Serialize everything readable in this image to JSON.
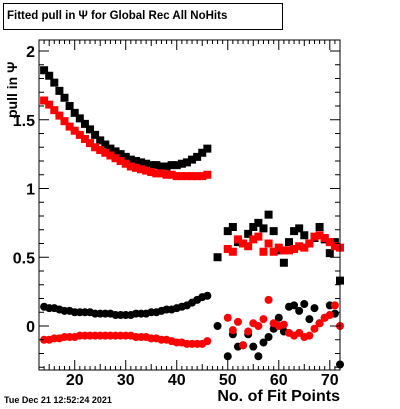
{
  "chart_data": {
    "type": "scatter",
    "title": "Fitted pull in  Ψ  for Global Rec All NoHits",
    "xlabel": "No. of Fit Points",
    "ylabel": "pull in  Ψ",
    "timestamp": "Tue Dec 21 12:52:24 2021",
    "xlim": [
      13,
      72
    ],
    "ylim": [
      -0.32,
      2.08
    ],
    "x_ticks": [
      20,
      30,
      40,
      50,
      60,
      70
    ],
    "y_ticks": [
      {
        "value": 0,
        "label": "0"
      },
      {
        "value": 0.5,
        "label": "0.5"
      },
      {
        "value": 1,
        "label": "1"
      },
      {
        "value": 1.5,
        "label": "1.5"
      },
      {
        "value": 2,
        "label": "2"
      }
    ],
    "series": [
      {
        "color": "#000000",
        "marker": "square",
        "points": [
          [
            14,
            1.86
          ],
          [
            15,
            1.82
          ],
          [
            16,
            1.77
          ],
          [
            17,
            1.71
          ],
          [
            18,
            1.66
          ],
          [
            19,
            1.6
          ],
          [
            20,
            1.55
          ],
          [
            21,
            1.51
          ],
          [
            22,
            1.47
          ],
          [
            23,
            1.43
          ],
          [
            24,
            1.39
          ],
          [
            25,
            1.35
          ],
          [
            26,
            1.32
          ],
          [
            27,
            1.29
          ],
          [
            28,
            1.27
          ],
          [
            29,
            1.25
          ],
          [
            30,
            1.23
          ],
          [
            31,
            1.21
          ],
          [
            32,
            1.2
          ],
          [
            33,
            1.19
          ],
          [
            34,
            1.18
          ],
          [
            35,
            1.17
          ],
          [
            36,
            1.17
          ],
          [
            37,
            1.16
          ],
          [
            38,
            1.16
          ],
          [
            39,
            1.17
          ],
          [
            40,
            1.17
          ],
          [
            41,
            1.18
          ],
          [
            42,
            1.19
          ],
          [
            43,
            1.21
          ],
          [
            44,
            1.23
          ],
          [
            45,
            1.26
          ],
          [
            46,
            1.29
          ],
          [
            48,
            0.5
          ],
          [
            50,
            0.69
          ],
          [
            51,
            0.72
          ],
          [
            52,
            0.61
          ],
          [
            53,
            0.6
          ],
          [
            54,
            0.67
          ],
          [
            55,
            0.72
          ],
          [
            56,
            0.75
          ],
          [
            57,
            0.71
          ],
          [
            58,
            0.81
          ],
          [
            59,
            0.69
          ],
          [
            60,
            0.55
          ],
          [
            61,
            0.46
          ],
          [
            62,
            0.61
          ],
          [
            63,
            0.69
          ],
          [
            64,
            0.71
          ],
          [
            65,
            0.66
          ],
          [
            66,
            0.6
          ],
          [
            67,
            0.64
          ],
          [
            68,
            0.72
          ],
          [
            69,
            0.63
          ],
          [
            70,
            0.53
          ],
          [
            71,
            0.61
          ],
          [
            72,
            0.33
          ]
        ]
      },
      {
        "color": "#ff0000",
        "marker": "square",
        "points": [
          [
            14,
            1.64
          ],
          [
            15,
            1.61
          ],
          [
            16,
            1.57
          ],
          [
            17,
            1.53
          ],
          [
            18,
            1.49
          ],
          [
            19,
            1.45
          ],
          [
            20,
            1.42
          ],
          [
            21,
            1.39
          ],
          [
            22,
            1.36
          ],
          [
            23,
            1.33
          ],
          [
            24,
            1.3
          ],
          [
            25,
            1.28
          ],
          [
            26,
            1.26
          ],
          [
            27,
            1.24
          ],
          [
            28,
            1.22
          ],
          [
            29,
            1.2
          ],
          [
            30,
            1.18
          ],
          [
            31,
            1.16
          ],
          [
            32,
            1.15
          ],
          [
            33,
            1.14
          ],
          [
            34,
            1.13
          ],
          [
            35,
            1.12
          ],
          [
            36,
            1.11
          ],
          [
            37,
            1.11
          ],
          [
            38,
            1.1
          ],
          [
            39,
            1.1
          ],
          [
            40,
            1.09
          ],
          [
            41,
            1.09
          ],
          [
            42,
            1.09
          ],
          [
            43,
            1.09
          ],
          [
            44,
            1.09
          ],
          [
            45,
            1.09
          ],
          [
            46,
            1.1
          ],
          [
            50,
            0.56
          ],
          [
            51,
            0.54
          ],
          [
            52,
            0.63
          ],
          [
            53,
            0.6
          ],
          [
            54,
            0.58
          ],
          [
            55,
            0.63
          ],
          [
            56,
            0.65
          ],
          [
            57,
            0.54
          ],
          [
            58,
            0.6
          ],
          [
            59,
            0.54
          ],
          [
            60,
            0.57
          ],
          [
            61,
            0.55
          ],
          [
            62,
            0.55
          ],
          [
            63,
            0.56
          ],
          [
            64,
            0.58
          ],
          [
            65,
            0.57
          ],
          [
            66,
            0.6
          ],
          [
            67,
            0.65
          ],
          [
            68,
            0.66
          ],
          [
            69,
            0.64
          ],
          [
            70,
            0.61
          ],
          [
            71,
            0.58
          ],
          [
            72,
            0.57
          ]
        ]
      },
      {
        "color": "#000000",
        "marker": "circle",
        "points": [
          [
            14,
            0.14
          ],
          [
            15,
            0.13
          ],
          [
            16,
            0.13
          ],
          [
            17,
            0.12
          ],
          [
            18,
            0.11
          ],
          [
            19,
            0.11
          ],
          [
            20,
            0.1
          ],
          [
            21,
            0.1
          ],
          [
            22,
            0.1
          ],
          [
            23,
            0.1
          ],
          [
            24,
            0.09
          ],
          [
            25,
            0.09
          ],
          [
            26,
            0.09
          ],
          [
            27,
            0.09
          ],
          [
            28,
            0.08
          ],
          [
            29,
            0.08
          ],
          [
            30,
            0.08
          ],
          [
            31,
            0.08
          ],
          [
            32,
            0.09
          ],
          [
            33,
            0.09
          ],
          [
            34,
            0.09
          ],
          [
            35,
            0.1
          ],
          [
            36,
            0.1
          ],
          [
            37,
            0.11
          ],
          [
            38,
            0.12
          ],
          [
            39,
            0.12
          ],
          [
            40,
            0.13
          ],
          [
            41,
            0.14
          ],
          [
            42,
            0.15
          ],
          [
            43,
            0.17
          ],
          [
            44,
            0.19
          ],
          [
            45,
            0.21
          ],
          [
            46,
            0.22
          ],
          [
            48,
            0.0
          ],
          [
            50,
            -0.22
          ],
          [
            51,
            -0.06
          ],
          [
            52,
            -0.15
          ],
          [
            53,
            -0.14
          ],
          [
            54,
            -0.06
          ],
          [
            55,
            -0.15
          ],
          [
            56,
            -0.22
          ],
          [
            57,
            -0.12
          ],
          [
            58,
            -0.08
          ],
          [
            59,
            -0.02
          ],
          [
            60,
            0.06
          ],
          [
            61,
            -0.04
          ],
          [
            62,
            0.14
          ],
          [
            63,
            0.15
          ],
          [
            64,
            0.11
          ],
          [
            65,
            0.16
          ],
          [
            66,
            0.05
          ],
          [
            67,
            0.13
          ],
          [
            68,
            0.02
          ],
          [
            69,
            0.06
          ],
          [
            70,
            0.15
          ],
          [
            71,
            0.09
          ],
          [
            72,
            -0.28
          ]
        ]
      },
      {
        "color": "#ff0000",
        "marker": "circle",
        "points": [
          [
            14,
            -0.1
          ],
          [
            15,
            -0.1
          ],
          [
            16,
            -0.09
          ],
          [
            17,
            -0.09
          ],
          [
            18,
            -0.08
          ],
          [
            19,
            -0.08
          ],
          [
            20,
            -0.08
          ],
          [
            21,
            -0.07
          ],
          [
            22,
            -0.07
          ],
          [
            23,
            -0.07
          ],
          [
            24,
            -0.07
          ],
          [
            25,
            -0.07
          ],
          [
            26,
            -0.07
          ],
          [
            27,
            -0.07
          ],
          [
            28,
            -0.07
          ],
          [
            29,
            -0.07
          ],
          [
            30,
            -0.07
          ],
          [
            31,
            -0.07
          ],
          [
            32,
            -0.08
          ],
          [
            33,
            -0.08
          ],
          [
            34,
            -0.08
          ],
          [
            35,
            -0.09
          ],
          [
            36,
            -0.09
          ],
          [
            37,
            -0.1
          ],
          [
            38,
            -0.1
          ],
          [
            39,
            -0.11
          ],
          [
            40,
            -0.12
          ],
          [
            41,
            -0.12
          ],
          [
            42,
            -0.13
          ],
          [
            43,
            -0.13
          ],
          [
            44,
            -0.13
          ],
          [
            45,
            -0.13
          ],
          [
            46,
            -0.11
          ],
          [
            50,
            0.06
          ],
          [
            51,
            -0.03
          ],
          [
            52,
            0.03
          ],
          [
            53,
            -0.14
          ],
          [
            54,
            -0.04
          ],
          [
            55,
            0.02
          ],
          [
            56,
            0.0
          ],
          [
            57,
            0.05
          ],
          [
            58,
            0.19
          ],
          [
            59,
            0.02
          ],
          [
            60,
            0.0
          ],
          [
            61,
            0.01
          ],
          [
            62,
            -0.05
          ],
          [
            63,
            -0.07
          ],
          [
            64,
            -0.05
          ],
          [
            65,
            -0.08
          ],
          [
            66,
            -0.07
          ],
          [
            67,
            -0.02
          ],
          [
            68,
            0.02
          ],
          [
            69,
            0.06
          ],
          [
            70,
            0.08
          ],
          [
            71,
            0.15
          ],
          [
            72,
            0.0
          ]
        ]
      }
    ]
  }
}
